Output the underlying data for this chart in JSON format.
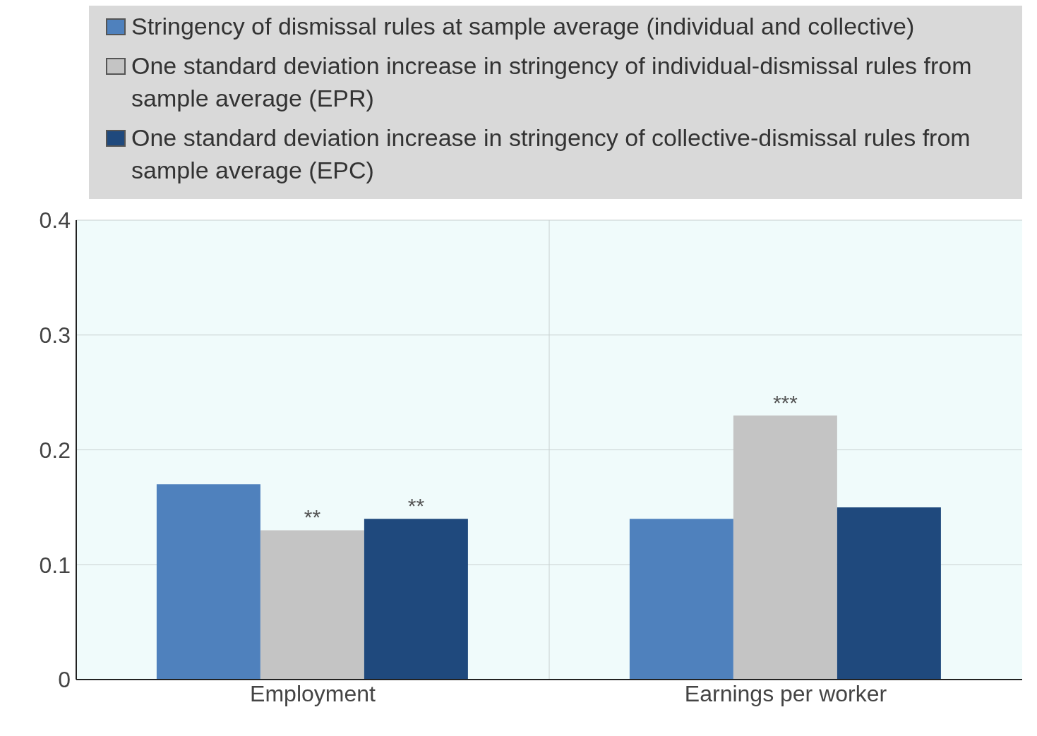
{
  "chart_data": {
    "type": "bar",
    "categories": [
      "Employment",
      "Earnings per worker"
    ],
    "series": [
      {
        "name": "Stringency of dismissal rules at sample average (individual and collective)",
        "color": "#4f81bd",
        "values": [
          0.17,
          0.14
        ]
      },
      {
        "name": "One standard deviation increase in stringency of individual-dismissal rules from sample average (EPR)",
        "color": "#c4c4c4",
        "values": [
          0.13,
          0.23
        ],
        "value_labels": [
          "**",
          "***"
        ]
      },
      {
        "name": "One standard deviation increase in stringency of collective-dismissal rules from sample average (EPC)",
        "color": "#1f497d",
        "values": [
          0.14,
          0.15
        ],
        "value_labels": [
          "**",
          null
        ]
      }
    ],
    "ylim": [
      0,
      0.4
    ],
    "yticks": [
      0,
      0.1,
      0.2,
      0.3,
      0.4
    ],
    "grid": true,
    "legend": "top"
  }
}
